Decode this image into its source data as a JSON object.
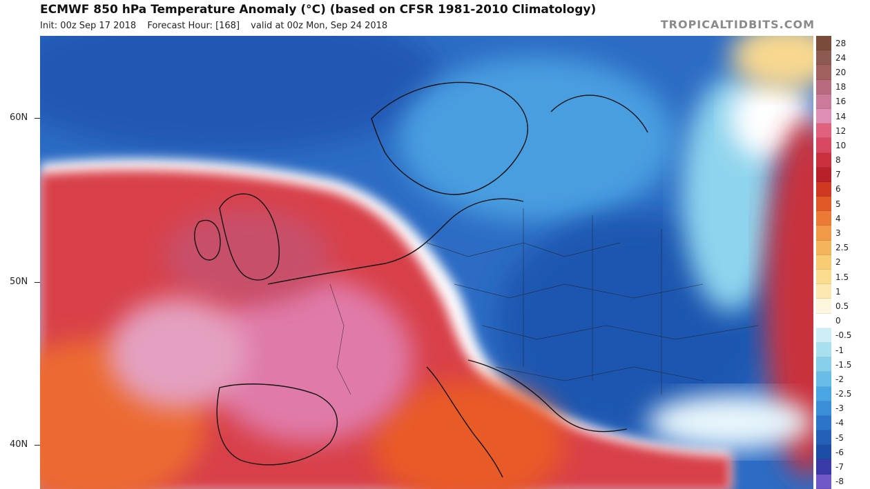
{
  "header": {
    "title": "ECMWF 850 hPa Temperature Anomaly (°C) (based on CFSR 1981-2010 Climatology)",
    "init": "Init: 00z Sep 17 2018",
    "forecast_hour": "Forecast Hour: [168]",
    "valid": "valid at 00z Mon, Sep 24 2018",
    "brand": "TROPICALTIDBITS.COM"
  },
  "latitude_labels": [
    "60N",
    "50N",
    "40N"
  ],
  "legend": {
    "values": [
      "28",
      "24",
      "20",
      "18",
      "16",
      "14",
      "12",
      "10",
      "8",
      "7",
      "6",
      "5",
      "4",
      "3",
      "2.5",
      "2",
      "1.5",
      "1",
      "0.5",
      "0",
      "-0.5",
      "-1",
      "-1.5",
      "-2",
      "-2.5",
      "-3",
      "-4",
      "-5",
      "-6",
      "-7",
      "-8"
    ],
    "colors": [
      "#7a4a3a",
      "#8c5a50",
      "#a0605e",
      "#b86a7e",
      "#cc7a9a",
      "#e08fb4",
      "#e0607e",
      "#d84860",
      "#c8303e",
      "#b8202a",
      "#d03822",
      "#e05a28",
      "#ec7a36",
      "#f09a48",
      "#f4b45c",
      "#f8cc72",
      "#fadc8e",
      "#fce8b0",
      "#fef6dc",
      "#ffffff",
      "#cdeef6",
      "#a8e0f0",
      "#86d0ec",
      "#68bce8",
      "#4aa6e2",
      "#3a8ed8",
      "#2c74ca",
      "#2460b8",
      "#1c4ea8",
      "#3a3aa8",
      "#7058c8"
    ]
  },
  "map": {
    "description_colors": {
      "warm_anomaly": "#c8303e",
      "cold_anomaly": "#2460b8",
      "neutral": "#ffffff"
    }
  }
}
